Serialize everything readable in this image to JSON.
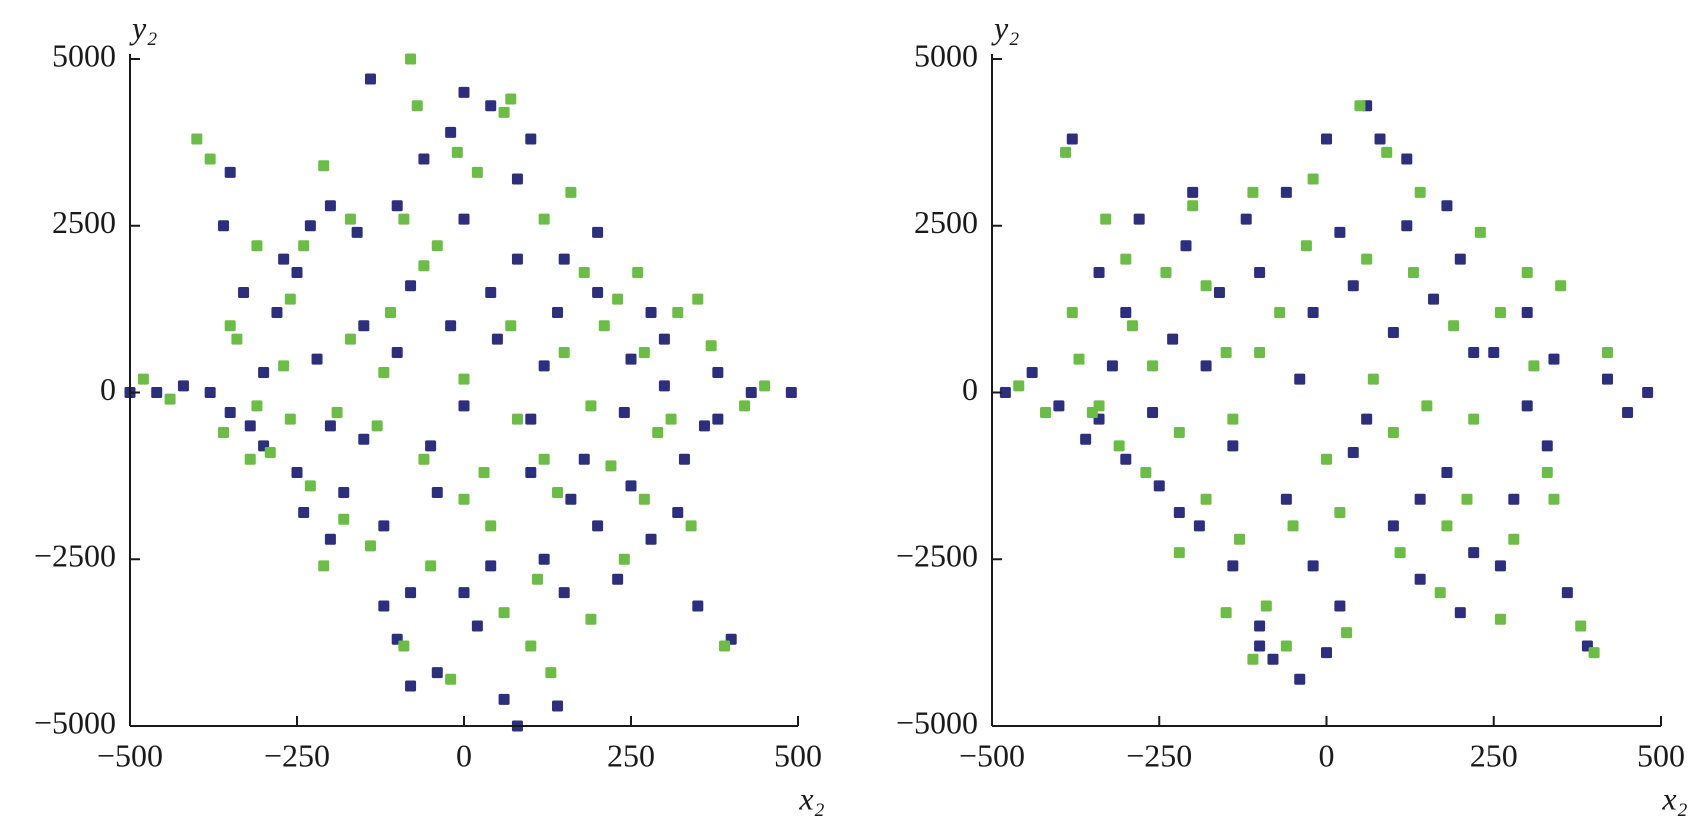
{
  "chart_data": [
    {
      "type": "scatter",
      "xlabel": "x₂",
      "ylabel": "y₂",
      "xlim": [
        -500,
        500
      ],
      "ylim": [
        -5000,
        5000
      ],
      "xticks": [
        {
          "value": -500,
          "label": "−500"
        },
        {
          "value": -250,
          "label": "−250"
        },
        0,
        250,
        500
      ],
      "yticks": [
        {
          "value": -5000,
          "label": "−5000"
        },
        {
          "value": -2500,
          "label": "−2500"
        },
        0,
        2500,
        5000
      ],
      "series": [
        {
          "color": "#2b2f7e",
          "x": [
            -500,
            -460,
            -420,
            -380,
            -350,
            -330,
            -300,
            -270,
            -250,
            -220,
            -200,
            -180,
            -150,
            -120,
            -100,
            -80,
            -60,
            -40,
            -20,
            0,
            20,
            40,
            60,
            80,
            100,
            120,
            140,
            150,
            180,
            200,
            230,
            250,
            280,
            300,
            330,
            350,
            380,
            400,
            430,
            490,
            -360,
            -320,
            -280,
            -240,
            -200,
            -160,
            -120,
            -80,
            -40,
            0,
            40,
            80,
            120,
            160,
            200,
            240,
            280,
            320,
            360,
            -300,
            -250,
            -200,
            -150,
            -100,
            -50,
            0,
            50,
            100,
            150,
            200,
            250,
            300,
            -140,
            -80,
            -20,
            40,
            100,
            -350,
            -230,
            -100,
            0,
            80,
            140,
            380
          ],
          "values": [
            0,
            0,
            100,
            0,
            -300,
            1500,
            -800,
            2000,
            -1200,
            500,
            2800,
            -1500,
            1000,
            -2000,
            2800,
            -3000,
            3500,
            -4200,
            3900,
            4500,
            -3500,
            1500,
            -4600,
            -5000,
            3800,
            -2500,
            -4700,
            2000,
            -1000,
            1500,
            -2800,
            500,
            -2200,
            800,
            -1000,
            -3200,
            300,
            -3700,
            0,
            0,
            2500,
            -500,
            1200,
            -1800,
            -500,
            2400,
            -3200,
            1600,
            -1500,
            2600,
            -2600,
            3200,
            400,
            -1600,
            2400,
            -300,
            1200,
            -1800,
            -500,
            300,
            1800,
            -2200,
            -700,
            600,
            -800,
            -200,
            800,
            -1200,
            -3000,
            -2000,
            -1400,
            100,
            4700,
            -4400,
            1000,
            4300,
            -400,
            3300,
            2500,
            -3700,
            -3000,
            2000,
            1200,
            -400
          ]
        },
        {
          "color": "#6cbd45",
          "x": [
            -480,
            -440,
            -400,
            -380,
            -360,
            -340,
            -310,
            -290,
            -260,
            -230,
            -210,
            -190,
            -170,
            -140,
            -110,
            -90,
            -80,
            -60,
            -40,
            -20,
            0,
            20,
            40,
            60,
            80,
            100,
            120,
            140,
            160,
            190,
            210,
            240,
            260,
            290,
            320,
            340,
            370,
            390,
            420,
            450,
            -350,
            -310,
            -270,
            -240,
            -210,
            -170,
            -130,
            -90,
            -50,
            -10,
            30,
            70,
            110,
            150,
            190,
            230,
            270,
            310,
            350,
            -320,
            -260,
            -180,
            -120,
            -60,
            0,
            60,
            120,
            180,
            220,
            270,
            -70,
            70,
            130
          ],
          "values": [
            200,
            -100,
            3800,
            3500,
            -600,
            800,
            2200,
            -900,
            1400,
            -1400,
            3400,
            -300,
            2600,
            -2300,
            1200,
            -3800,
            5000,
            -1000,
            2200,
            -4300,
            200,
            3300,
            -2000,
            4200,
            -400,
            -3800,
            2600,
            -1500,
            3000,
            -3400,
            1000,
            -2500,
            1800,
            -600,
            1200,
            -2000,
            700,
            -3800,
            -200,
            100,
            1000,
            -200,
            400,
            2200,
            -2600,
            800,
            -500,
            2600,
            -2600,
            3600,
            -1200,
            1000,
            -2800,
            600,
            -200,
            1400,
            -1600,
            -400,
            1400,
            -1000,
            -400,
            -1900,
            300,
            1900,
            -1600,
            -3300,
            -1000,
            1800,
            -1100,
            600,
            4300,
            4400,
            -4200
          ]
        }
      ]
    },
    {
      "type": "scatter",
      "xlabel": "x₂",
      "ylabel": "y₂",
      "xlim": [
        -500,
        500
      ],
      "ylim": [
        -5000,
        5000
      ],
      "xticks": [
        {
          "value": -500,
          "label": "−500"
        },
        {
          "value": -250,
          "label": "−250"
        },
        0,
        250,
        500
      ],
      "yticks": [
        {
          "value": -5000,
          "label": "−5000"
        },
        {
          "value": -2500,
          "label": "−2500"
        },
        0,
        2500,
        5000
      ],
      "series": [
        {
          "color": "#2b2f7e",
          "x": [
            -480,
            -440,
            -400,
            -380,
            -360,
            -340,
            -320,
            -300,
            -280,
            -250,
            -230,
            -210,
            -190,
            -160,
            -140,
            -120,
            -100,
            -80,
            -60,
            -40,
            -20,
            0,
            20,
            40,
            60,
            80,
            100,
            120,
            140,
            160,
            180,
            200,
            220,
            250,
            280,
            300,
            330,
            360,
            390,
            420,
            450,
            480,
            -340,
            -300,
            -260,
            -220,
            -180,
            -140,
            -100,
            -60,
            -20,
            20,
            60,
            100,
            140,
            180,
            220,
            260,
            300,
            340,
            -200,
            -100,
            0,
            120,
            200,
            -40,
            40
          ],
          "values": [
            0,
            300,
            -200,
            3800,
            -700,
            1800,
            400,
            -1000,
            2600,
            -1400,
            800,
            2200,
            -2000,
            1500,
            -2600,
            2600,
            -3500,
            -4000,
            3000,
            -4300,
            1200,
            3800,
            -3200,
            -900,
            4300,
            3800,
            -2000,
            2500,
            -2800,
            1400,
            -1200,
            2000,
            -2400,
            600,
            -1600,
            1200,
            -800,
            -3000,
            -3800,
            200,
            -300,
            0,
            -400,
            1200,
            -300,
            -1800,
            400,
            -800,
            1800,
            -1600,
            -2600,
            2400,
            -400,
            900,
            -1600,
            2800,
            600,
            -2600,
            -200,
            500,
            3000,
            -3800,
            -3900,
            3500,
            -3300,
            200,
            1600
          ]
        },
        {
          "color": "#6cbd45",
          "x": [
            -460,
            -420,
            -390,
            -370,
            -350,
            -330,
            -310,
            -290,
            -270,
            -240,
            -220,
            -200,
            -180,
            -150,
            -130,
            -110,
            -90,
            -70,
            -50,
            -30,
            0,
            30,
            50,
            70,
            90,
            110,
            130,
            150,
            170,
            190,
            210,
            230,
            260,
            280,
            310,
            330,
            350,
            380,
            400,
            420,
            -380,
            -340,
            -300,
            -260,
            -220,
            -180,
            -140,
            -100,
            -60,
            -20,
            20,
            60,
            100,
            140,
            180,
            220,
            260,
            300,
            340,
            -150,
            -110
          ],
          "values": [
            100,
            -300,
            3600,
            500,
            -300,
            2600,
            -800,
            1000,
            -1200,
            1800,
            -600,
            2800,
            -1600,
            600,
            -2200,
            3000,
            -3200,
            1200,
            -2000,
            2200,
            -1000,
            -3600,
            4300,
            200,
            3600,
            -2400,
            1800,
            -200,
            -3000,
            1000,
            -1600,
            2400,
            1200,
            -2200,
            400,
            -1200,
            1600,
            -3500,
            -3900,
            600,
            1200,
            -200,
            2000,
            400,
            -2400,
            1600,
            -400,
            600,
            -3800,
            3200,
            -1800,
            2000,
            -600,
            3000,
            -2000,
            -400,
            -3400,
            1800,
            -1600,
            -3300,
            -4000
          ]
        }
      ]
    }
  ]
}
